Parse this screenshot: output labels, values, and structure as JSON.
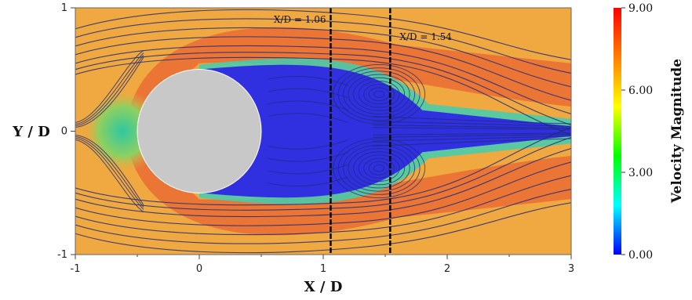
{
  "chart_data": {
    "type": "heatmap",
    "title": "",
    "xlabel": "X / D",
    "ylabel": "Y / D",
    "xlim": [
      -1,
      3
    ],
    "ylim": [
      -1,
      1
    ],
    "x_ticks": [
      "-1",
      "0",
      "1",
      "2",
      "3"
    ],
    "y_ticks": [
      "-1",
      "0",
      "1"
    ],
    "colorbar": {
      "title": "Velocity Magnitude",
      "range": [
        0.0,
        9.0
      ],
      "ticks": [
        "0.00",
        "3.00",
        "6.00",
        "9.00"
      ],
      "colormap": [
        "#0000ff",
        "#00ffff",
        "#00ff00",
        "#ffff00",
        "#ff8000",
        "#ff0000"
      ]
    },
    "cylinder": {
      "center_x": 0.0,
      "center_y": 0.0,
      "diameter": 1.0,
      "color": "#c8c8c8"
    },
    "annotations": [
      {
        "label": "X/D = 1.06",
        "x": 1.06
      },
      {
        "label": "X/D = 1.54",
        "x": 1.54
      }
    ],
    "recirculation_vortices": [
      {
        "x": 1.45,
        "y": 0.3
      },
      {
        "x": 1.45,
        "y": -0.3
      }
    ],
    "colors": {
      "freestream": "#f0a840",
      "high_speed": "#e86030",
      "wake": "#3030e0",
      "streamline": "#1e2a78"
    }
  }
}
